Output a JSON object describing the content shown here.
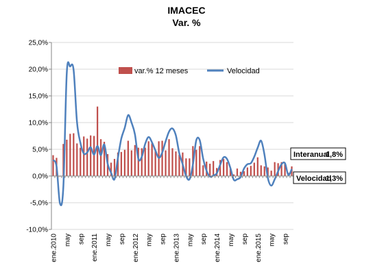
{
  "chart_data": {
    "type": "bar",
    "title": "IMACEC",
    "subtitle": "Var. %",
    "ylim": [
      -10,
      25
    ],
    "y_ticks": [
      "25,0%",
      "20,0%",
      "15,0%",
      "10,0%",
      "5,0%",
      "0,0%",
      "-5,0%",
      "-10,0%"
    ],
    "y_tick_values": [
      25,
      20,
      15,
      10,
      5,
      0,
      -5,
      -10
    ],
    "x_tick_labels": [
      "ene.2010",
      "may",
      "sep",
      "ene.2011",
      "may",
      "sep",
      "ene.2012",
      "may",
      "sep",
      "ene.2013",
      "may",
      "sep",
      "ene.2014",
      "may",
      "sep",
      "ene.2015",
      "may",
      "sep"
    ],
    "x_tick_indices": [
      0,
      4,
      8,
      12,
      16,
      20,
      24,
      28,
      32,
      36,
      40,
      44,
      48,
      52,
      56,
      60,
      64,
      68
    ],
    "n_months": 71,
    "legend": {
      "position": "top-center"
    },
    "grid": "horizontal",
    "colors": {
      "bars": "#c0504d",
      "line": "#4f81bd",
      "axis": "#868686",
      "grid": "#d9d9d9"
    },
    "series": [
      {
        "name": "var.% 12 meses",
        "kind": "bar",
        "values": [
          3.9,
          3.4,
          -0.1,
          6.0,
          6.8,
          7.9,
          8.0,
          6.1,
          5.3,
          7.4,
          7.0,
          7.6,
          7.5,
          13.0,
          6.9,
          6.4,
          4.1,
          2.5,
          3.2,
          4.4,
          4.5,
          4.9,
          6.6,
          4.8,
          5.8,
          5.3,
          5.2,
          5.3,
          6.5,
          6.1,
          4.9,
          6.5,
          6.6,
          4.8,
          6.9,
          5.2,
          4.6,
          4.0,
          4.4,
          3.3,
          3.3,
          5.6,
          4.9,
          5.6,
          2.0,
          2.7,
          2.3,
          2.8,
          1.5,
          3.0,
          3.2,
          2.6,
          1.4,
          0.3,
          1.4,
          0.8,
          0.9,
          1.6,
          1.9,
          2.5,
          3.5,
          2.0,
          1.8,
          1.6,
          1.0,
          2.6,
          2.4,
          2.6,
          2.3,
          0.6,
          1.8
        ]
      },
      {
        "name": "Velocidad",
        "kind": "line",
        "values": [
          3.0,
          1.8,
          -5.1,
          -2.0,
          19.3,
          20.5,
          19.9,
          10.1,
          6.2,
          4.2,
          4.4,
          5.4,
          4.0,
          5.6,
          3.9,
          5.9,
          2.3,
          0.6,
          -0.6,
          3.4,
          7.0,
          9.0,
          11.4,
          10.0,
          7.8,
          3.2,
          3.6,
          6.0,
          7.3,
          6.3,
          4.8,
          3.4,
          4.4,
          6.5,
          8.3,
          8.9,
          7.6,
          4.3,
          2.2,
          0.0,
          -0.6,
          2.1,
          6.7,
          6.7,
          3.3,
          1.0,
          -0.1,
          0.1,
          0.5,
          2.1,
          3.5,
          3.2,
          1.5,
          -0.7,
          -0.6,
          -0.2,
          1.4,
          2.2,
          2.4,
          3.6,
          5.3,
          6.6,
          4.0,
          -0.4,
          -1.8,
          -0.6,
          0.9,
          2.2,
          2.4,
          0.2,
          1.3
        ]
      }
    ],
    "annotations": [
      {
        "label": "Interanual",
        "value": "1,8%"
      },
      {
        "label": "Velocidad",
        "value": "1,3%"
      }
    ]
  }
}
